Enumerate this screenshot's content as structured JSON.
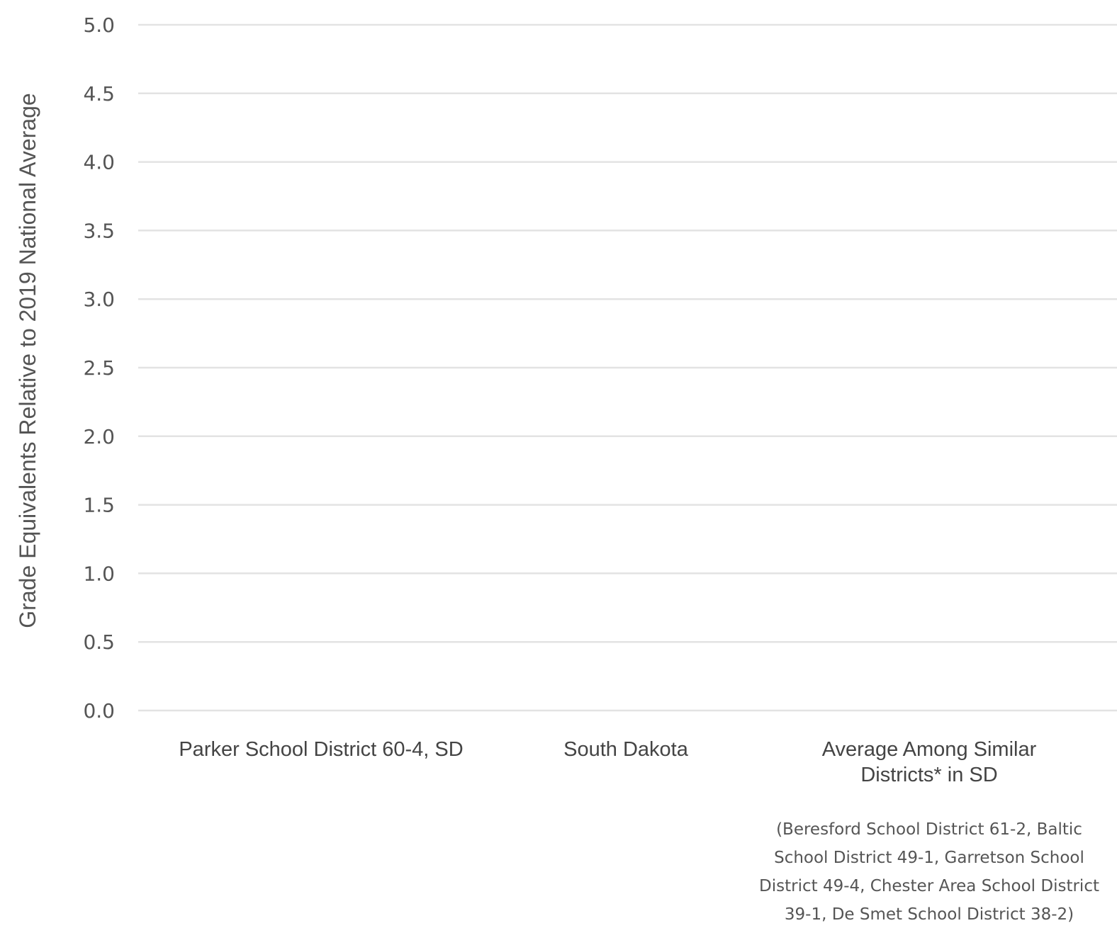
{
  "chart_data": {
    "type": "bar",
    "title": "",
    "xlabel": "",
    "ylabel": "Grade Equivalents Relative to 2019 National Average",
    "ylim": [
      0,
      5
    ],
    "yticks": [
      "0.0",
      "0.5",
      "1.0",
      "1.5",
      "2.0",
      "2.5",
      "3.0",
      "3.5",
      "4.0",
      "4.5",
      "5.0"
    ],
    "grid": true,
    "categories": [
      {
        "label_lines": [
          "Parker School District 60-4, SD"
        ]
      },
      {
        "label_lines": [
          "South Dakota"
        ]
      },
      {
        "label_lines": [
          "Average Among Similar",
          "Districts* in SD"
        ],
        "note_lines": [
          "(Beresford School District 61-2, Baltic",
          "School District 49-1, Garretson School",
          "District 49-4, Chester Area School District",
          "39-1, De Smet School District 38-2)"
        ]
      }
    ],
    "colors": {
      "grid": "#e3e3e3",
      "text": "#555555",
      "category_text": "#444444"
    }
  }
}
